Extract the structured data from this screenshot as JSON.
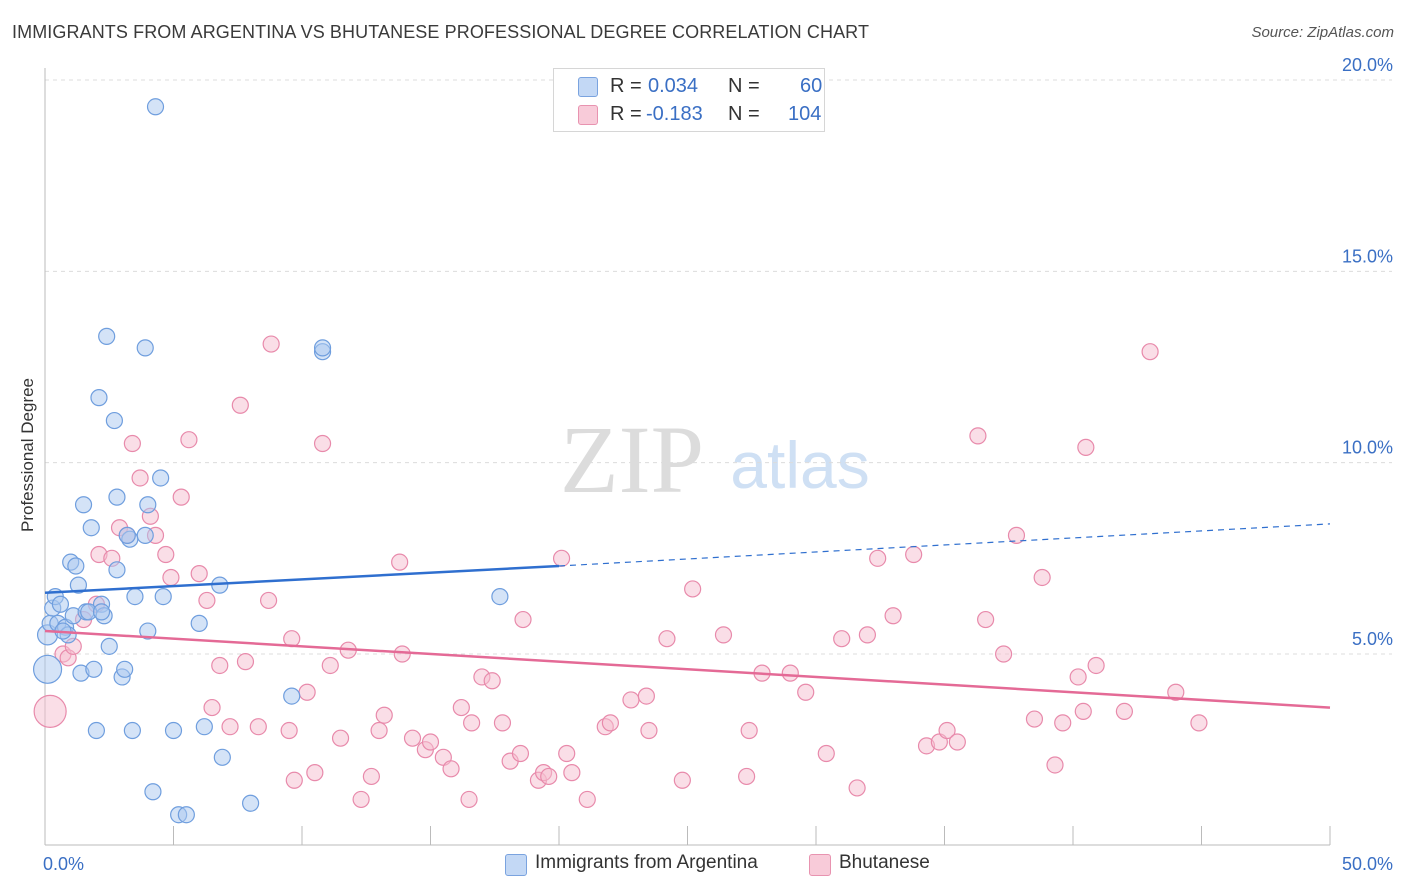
{
  "title": "IMMIGRANTS FROM ARGENTINA VS BHUTANESE PROFESSIONAL DEGREE CORRELATION CHART",
  "source": "Source: ZipAtlas.com",
  "watermark": {
    "zip": "ZIP",
    "atlas": "atlas"
  },
  "legend": {
    "series1": {
      "r_label": "R =",
      "r_value": "0.034",
      "n_label": "N =",
      "n_value": "60"
    },
    "series2": {
      "r_label": "R =",
      "r_value": "-0.183",
      "n_label": "N =",
      "n_value": "104"
    }
  },
  "colors": {
    "series1_fill": "#a9c8f0",
    "series1_stroke": "#6f9ede",
    "series1_line": "#2f6fcf",
    "series2_fill": "#f6bdd0",
    "series2_stroke": "#e88aab",
    "series2_line": "#e46a96",
    "axis_label": "#3a6fc4",
    "grid": "#dcdcdc"
  },
  "chart_data": {
    "type": "scatter",
    "title": "IMMIGRANTS FROM ARGENTINA VS BHUTANESE PROFESSIONAL DEGREE CORRELATION CHART",
    "xlabel": "",
    "ylabel": "Professional Degree",
    "xlim": [
      0,
      50
    ],
    "ylim": [
      0,
      21
    ],
    "x_tick_labels": [
      "0.0%",
      "50.0%"
    ],
    "y_ticks": [
      5,
      10,
      15,
      20
    ],
    "y_tick_labels": [
      "5.0%",
      "10.0%",
      "15.0%",
      "20.0%"
    ],
    "series": [
      {
        "name": "Immigrants from Argentina",
        "trend": {
          "x0": 0,
          "y0": 6.6,
          "x1": 20,
          "y1": 7.3,
          "dashed_to_x": 50,
          "dashed_to_y": 8.4
        },
        "points": [
          [
            0.1,
            4.6,
            14
          ],
          [
            0.1,
            5.5,
            10
          ],
          [
            0.2,
            5.8,
            8
          ],
          [
            0.3,
            6.2,
            8
          ],
          [
            0.4,
            6.5,
            8
          ],
          [
            0.5,
            5.8,
            8
          ],
          [
            0.6,
            6.3,
            8
          ],
          [
            0.8,
            5.7,
            8
          ],
          [
            0.9,
            5.5,
            8
          ],
          [
            1.0,
            7.4,
            8
          ],
          [
            1.1,
            6.0,
            8
          ],
          [
            1.2,
            7.3,
            8
          ],
          [
            1.3,
            6.8,
            8
          ],
          [
            1.4,
            4.5,
            8
          ],
          [
            1.5,
            8.9,
            8
          ],
          [
            1.6,
            6.1,
            8
          ],
          [
            1.8,
            8.3,
            8
          ],
          [
            1.9,
            4.6,
            8
          ],
          [
            2.0,
            3.0,
            8
          ],
          [
            2.1,
            11.7,
            8
          ],
          [
            2.2,
            6.3,
            8
          ],
          [
            2.3,
            6.0,
            8
          ],
          [
            2.4,
            13.3,
            8
          ],
          [
            2.5,
            5.2,
            8
          ],
          [
            2.7,
            11.1,
            8
          ],
          [
            2.8,
            7.2,
            8
          ],
          [
            2.8,
            9.1,
            8
          ],
          [
            3.0,
            4.4,
            8
          ],
          [
            3.1,
            4.6,
            8
          ],
          [
            3.3,
            8.0,
            8
          ],
          [
            3.4,
            3.0,
            8
          ],
          [
            3.5,
            6.5,
            8
          ],
          [
            3.9,
            8.1,
            8
          ],
          [
            3.9,
            13.0,
            8
          ],
          [
            4.0,
            5.6,
            8
          ],
          [
            4.0,
            8.9,
            8
          ],
          [
            4.2,
            1.4,
            8
          ],
          [
            4.3,
            19.3,
            8
          ],
          [
            4.5,
            9.6,
            8
          ],
          [
            4.6,
            6.5,
            8
          ],
          [
            5.0,
            3.0,
            8
          ],
          [
            5.2,
            0.8,
            8
          ],
          [
            5.5,
            0.8,
            8
          ],
          [
            6.0,
            5.8,
            8
          ],
          [
            6.2,
            3.1,
            8
          ],
          [
            6.8,
            6.8,
            8
          ],
          [
            6.9,
            2.3,
            8
          ],
          [
            8.0,
            1.1,
            8
          ],
          [
            9.6,
            3.9,
            8
          ],
          [
            10.8,
            12.9,
            8
          ],
          [
            10.8,
            13.0,
            8
          ],
          [
            17.7,
            6.5,
            8
          ],
          [
            3.2,
            8.1,
            8
          ],
          [
            1.7,
            6.1,
            8
          ],
          [
            0.7,
            5.6,
            8
          ],
          [
            2.2,
            6.1,
            8
          ]
        ]
      },
      {
        "name": "Bhutanese",
        "trend": {
          "x0": 0,
          "y0": 5.6,
          "x1": 50,
          "y1": 3.6
        },
        "points": [
          [
            0.2,
            3.5,
            16
          ],
          [
            0.7,
            5.0,
            8
          ],
          [
            0.9,
            4.9,
            8
          ],
          [
            1.1,
            5.2,
            8
          ],
          [
            1.5,
            5.9,
            8
          ],
          [
            2.0,
            6.3,
            8
          ],
          [
            2.1,
            7.6,
            8
          ],
          [
            2.6,
            7.5,
            8
          ],
          [
            2.9,
            8.3,
            8
          ],
          [
            3.2,
            8.1,
            8
          ],
          [
            3.4,
            10.5,
            8
          ],
          [
            3.7,
            9.6,
            8
          ],
          [
            4.1,
            8.6,
            8
          ],
          [
            4.3,
            8.1,
            8
          ],
          [
            4.7,
            7.6,
            8
          ],
          [
            4.9,
            7.0,
            8
          ],
          [
            5.3,
            9.1,
            8
          ],
          [
            5.6,
            10.6,
            8
          ],
          [
            6.0,
            7.1,
            8
          ],
          [
            6.3,
            6.4,
            8
          ],
          [
            6.5,
            3.6,
            8
          ],
          [
            6.8,
            4.7,
            8
          ],
          [
            7.2,
            3.1,
            8
          ],
          [
            7.6,
            11.5,
            8
          ],
          [
            7.8,
            4.8,
            8
          ],
          [
            8.3,
            3.1,
            8
          ],
          [
            8.7,
            6.4,
            8
          ],
          [
            8.8,
            13.1,
            8
          ],
          [
            9.5,
            3.0,
            8
          ],
          [
            9.6,
            5.4,
            8
          ],
          [
            9.7,
            1.7,
            8
          ],
          [
            10.2,
            4.0,
            8
          ],
          [
            10.5,
            1.9,
            8
          ],
          [
            10.8,
            10.5,
            8
          ],
          [
            11.1,
            4.7,
            8
          ],
          [
            11.5,
            2.8,
            8
          ],
          [
            11.8,
            5.1,
            8
          ],
          [
            12.3,
            1.2,
            8
          ],
          [
            12.7,
            1.8,
            8
          ],
          [
            13.0,
            3.0,
            8
          ],
          [
            13.2,
            3.4,
            8
          ],
          [
            13.8,
            7.4,
            8
          ],
          [
            13.9,
            5.0,
            8
          ],
          [
            14.3,
            2.8,
            8
          ],
          [
            14.8,
            2.5,
            8
          ],
          [
            15.0,
            2.7,
            8
          ],
          [
            15.5,
            2.3,
            8
          ],
          [
            15.8,
            2.0,
            8
          ],
          [
            16.2,
            3.6,
            8
          ],
          [
            16.5,
            1.2,
            8
          ],
          [
            16.6,
            3.2,
            8
          ],
          [
            17.0,
            4.4,
            8
          ],
          [
            17.4,
            4.3,
            8
          ],
          [
            17.8,
            3.2,
            8
          ],
          [
            18.1,
            2.2,
            8
          ],
          [
            18.5,
            2.4,
            8
          ],
          [
            18.6,
            5.9,
            8
          ],
          [
            19.2,
            1.7,
            8
          ],
          [
            19.4,
            1.9,
            8
          ],
          [
            19.6,
            1.8,
            8
          ],
          [
            20.1,
            7.5,
            8
          ],
          [
            20.3,
            2.4,
            8
          ],
          [
            20.5,
            1.9,
            8
          ],
          [
            21.1,
            1.2,
            8
          ],
          [
            21.8,
            3.1,
            8
          ],
          [
            22.0,
            3.2,
            8
          ],
          [
            22.8,
            3.8,
            8
          ],
          [
            23.4,
            3.9,
            8
          ],
          [
            23.5,
            3.0,
            8
          ],
          [
            24.2,
            5.4,
            8
          ],
          [
            24.8,
            1.7,
            8
          ],
          [
            25.2,
            6.7,
            8
          ],
          [
            26.4,
            5.5,
            8
          ],
          [
            27.3,
            1.8,
            8
          ],
          [
            27.4,
            3.0,
            8
          ],
          [
            27.9,
            4.5,
            8
          ],
          [
            29.0,
            4.5,
            8
          ],
          [
            29.6,
            4.0,
            8
          ],
          [
            30.4,
            2.4,
            8
          ],
          [
            31.0,
            5.4,
            8
          ],
          [
            31.6,
            1.5,
            8
          ],
          [
            32.0,
            5.5,
            8
          ],
          [
            32.4,
            7.5,
            8
          ],
          [
            33.0,
            6.0,
            8
          ],
          [
            33.8,
            7.6,
            8
          ],
          [
            34.3,
            2.6,
            8
          ],
          [
            34.8,
            2.7,
            8
          ],
          [
            35.1,
            3.0,
            8
          ],
          [
            35.5,
            2.7,
            8
          ],
          [
            36.3,
            10.7,
            8
          ],
          [
            36.6,
            5.9,
            8
          ],
          [
            37.3,
            5.0,
            8
          ],
          [
            37.8,
            8.1,
            8
          ],
          [
            38.5,
            3.3,
            8
          ],
          [
            38.8,
            7.0,
            8
          ],
          [
            39.3,
            2.1,
            8
          ],
          [
            39.6,
            3.2,
            8
          ],
          [
            40.2,
            4.4,
            8
          ],
          [
            40.4,
            3.5,
            8
          ],
          [
            40.5,
            10.4,
            8
          ],
          [
            40.9,
            4.7,
            8
          ],
          [
            42.0,
            3.5,
            8
          ],
          [
            43.0,
            12.9,
            8
          ],
          [
            44.0,
            4.0,
            8
          ],
          [
            44.9,
            3.2,
            8
          ]
        ]
      }
    ]
  },
  "bottom_legend": {
    "series1_label": "Immigrants from Argentina",
    "series2_label": "Bhutanese"
  }
}
